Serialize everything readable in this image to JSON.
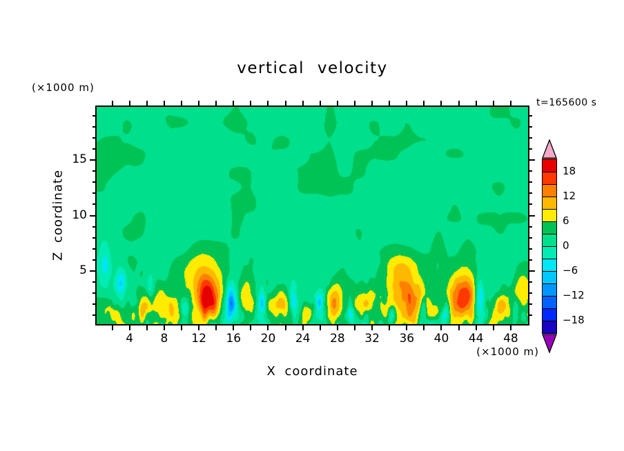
{
  "chart_data": {
    "type": "heatmap",
    "title": "vertical velocity",
    "time_label": "t=165600 s",
    "x_axis": {
      "label": "X coordinate",
      "unit_label": "(×1000 m)",
      "min": 0.2,
      "max": 50.0,
      "minor_tick_step": 2,
      "major_tick_values": [
        4,
        8,
        12,
        16,
        20,
        24,
        28,
        32,
        36,
        40,
        44,
        48
      ],
      "major_tick_labels": [
        "4",
        "8",
        "12",
        "16",
        "20",
        "24",
        "28",
        "32",
        "36",
        "40",
        "44",
        "48"
      ]
    },
    "z_axis": {
      "label": "Z coordinate",
      "unit_label": "(×1000 m)",
      "min": 0.2,
      "max": 19.8,
      "minor_tick_step": 1,
      "major_tick_values": [
        5,
        10,
        15
      ],
      "major_tick_labels": [
        "5",
        "10",
        "15"
      ]
    },
    "colorbar": {
      "tick_labels": [
        "18",
        "12",
        "6",
        "0",
        "−6",
        "−12",
        "−18"
      ],
      "levels": [
        -21,
        -18,
        -15,
        -12,
        -9,
        -6,
        -3,
        0,
        3,
        6,
        9,
        12,
        15,
        18,
        21
      ],
      "band_colors": [
        "#1a00c0",
        "#0028ff",
        "#0062ff",
        "#0096ff",
        "#00c8ff",
        "#00e6f5",
        "#00ecb4",
        "#00df8b",
        "#00c355",
        "#ffec00",
        "#ffb800",
        "#ff8000",
        "#ff3800",
        "#e60000"
      ],
      "under_arrow_color": "#9900bb",
      "over_arrow_color": "#f2aac8"
    },
    "field_model": {
      "background": 2.3,
      "seed": 1234567,
      "mottle": {
        "amp": 1.6,
        "scale_x1": 4.2,
        "scale_z1": 3.2,
        "scale_x2": 1.8,
        "scale_z2": 1.4
      },
      "turbulence": {
        "amp": 6.2,
        "depth": 7.8,
        "scale_x1": 1.15,
        "scale_z1": 2.3,
        "scale_x2": 0.55,
        "scale_z2": 1.0
      },
      "plumes": [
        [
          13.0,
          2.4,
          1.5,
          1.8,
          16
        ],
        [
          12.4,
          4.8,
          2.4,
          2.0,
          6
        ],
        [
          7.6,
          2.0,
          1.7,
          1.5,
          10
        ],
        [
          5.2,
          1.4,
          0.9,
          1.0,
          6
        ],
        [
          17.4,
          2.6,
          0.8,
          1.6,
          6
        ],
        [
          21.0,
          2.0,
          1.1,
          1.3,
          8
        ],
        [
          24.6,
          1.4,
          0.9,
          1.0,
          6
        ],
        [
          27.9,
          2.2,
          1.1,
          1.7,
          9
        ],
        [
          31.0,
          2.0,
          1.4,
          1.5,
          9
        ],
        [
          33.6,
          1.2,
          0.7,
          0.9,
          6
        ],
        [
          36.0,
          2.6,
          2.2,
          2.1,
          13
        ],
        [
          35.2,
          5.2,
          1.7,
          1.5,
          5
        ],
        [
          39.2,
          1.6,
          0.8,
          1.0,
          6
        ],
        [
          42.6,
          2.8,
          1.8,
          2.2,
          13
        ],
        [
          46.8,
          1.8,
          1.0,
          1.2,
          7
        ],
        [
          49.3,
          3.0,
          1.0,
          1.8,
          7
        ],
        [
          2.0,
          1.5,
          0.8,
          1.0,
          5
        ],
        [
          15.7,
          2.2,
          0.55,
          1.5,
          -14
        ],
        [
          10.4,
          1.6,
          0.5,
          1.0,
          -9
        ],
        [
          19.3,
          2.1,
          0.45,
          1.2,
          -11
        ],
        [
          22.9,
          2.6,
          0.4,
          1.1,
          -6
        ],
        [
          26.0,
          2.2,
          0.45,
          1.0,
          -8
        ],
        [
          29.5,
          1.4,
          0.4,
          0.9,
          -7
        ],
        [
          34.3,
          1.1,
          0.5,
          0.8,
          -9
        ],
        [
          37.9,
          1.4,
          0.4,
          1.0,
          -7
        ],
        [
          40.6,
          1.3,
          0.4,
          0.9,
          -7
        ],
        [
          44.4,
          2.4,
          0.6,
          1.7,
          -13
        ],
        [
          48.5,
          1.6,
          0.35,
          1.0,
          -8
        ],
        [
          3.0,
          3.8,
          0.6,
          1.6,
          -8
        ],
        [
          1.2,
          5.2,
          0.7,
          2.4,
          -6
        ],
        [
          6.4,
          3.6,
          0.5,
          1.2,
          -6
        ]
      ]
    }
  }
}
